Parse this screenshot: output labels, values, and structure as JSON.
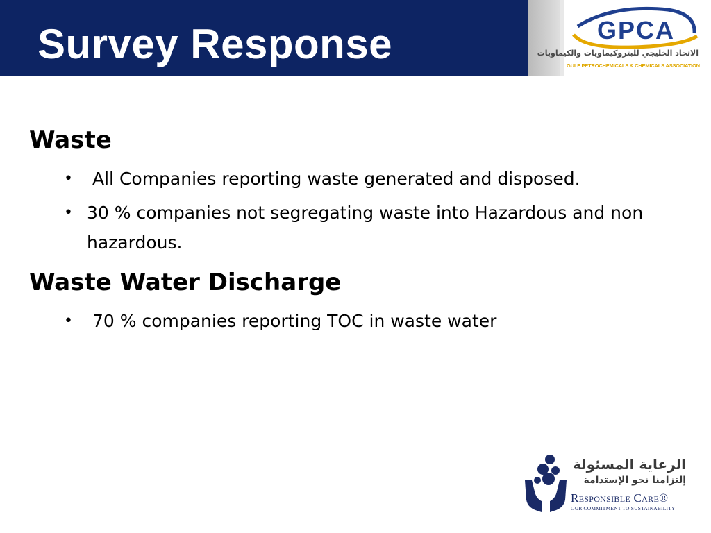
{
  "slide": {
    "title": "Survey Response"
  },
  "header_logo": {
    "name": "GPCA",
    "arabic_name": "الاتحاد الخليجي للبتروكيماويات والكيماويات",
    "english_name": "GULF PETROCHEMICALS & CHEMICALS ASSOCIATION",
    "colors": {
      "blue": "#1f3f8f",
      "gold": "#e5a800"
    }
  },
  "sections": [
    {
      "heading": "Waste",
      "bullets": [
        "All Companies reporting waste generated and disposed.",
        "30 % companies not segregating waste into Hazardous and non",
        "hazardous."
      ]
    },
    {
      "heading": "Waste Water Discharge",
      "bullets": [
        "70 % companies reporting TOC in waste water"
      ]
    }
  ],
  "footer_logo": {
    "arabic_line1": "الرعاية المسئولة",
    "arabic_line2": "إلتزامنا نحو الإستدامة",
    "english_name": "Responsible Care®",
    "tagline": "OUR COMMITMENT TO SUSTAINABILITY",
    "icon": "hands-molecule-icon",
    "color": "#1a2a66"
  },
  "colors": {
    "header_bar": "#0d2463",
    "title_text": "#ffffff",
    "body_text": "#000000"
  }
}
